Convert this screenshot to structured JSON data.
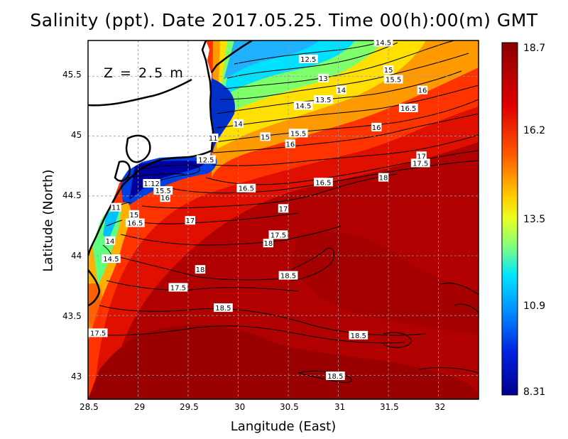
{
  "title": "Salinity (ppt). Date 2017.05.25. Time 00(h):00(m) GMT",
  "depth_label": "Z = 2.5 m",
  "axes": {
    "xlabel": "Langitude (East)",
    "ylabel": "Latitude (North)",
    "xticks": [
      "28.5",
      "29",
      "29.5",
      "30",
      "30.5",
      "31",
      "31.5",
      "32"
    ],
    "yticks": [
      "45.5",
      "45",
      "44.5",
      "44",
      "43.5",
      "43"
    ],
    "xlim": [
      28.5,
      32.4
    ],
    "ylim": [
      42.8,
      45.8
    ],
    "grid": true
  },
  "colorbar": {
    "labels": [
      "18.7",
      "16.2",
      "13.5",
      "10.9",
      "8.31"
    ],
    "min": 8.31,
    "max": 18.7,
    "colors": [
      "#8b0000",
      "#ff2a00",
      "#ff8c00",
      "#ffff00",
      "#7fff7f",
      "#00e5ff",
      "#0080ff",
      "#0000cd",
      "#00008b"
    ]
  },
  "contour_labels": [
    {
      "text": "14.5",
      "lon": 31.45,
      "lat": 45.78
    },
    {
      "text": "12.5",
      "lon": 30.7,
      "lat": 45.64
    },
    {
      "text": "15",
      "lon": 31.5,
      "lat": 45.55
    },
    {
      "text": "13",
      "lon": 30.85,
      "lat": 45.48
    },
    {
      "text": "15.5",
      "lon": 31.55,
      "lat": 45.47
    },
    {
      "text": "14",
      "lon": 31.03,
      "lat": 45.38
    },
    {
      "text": "16",
      "lon": 31.84,
      "lat": 45.38
    },
    {
      "text": "13.5",
      "lon": 30.85,
      "lat": 45.3
    },
    {
      "text": "14.5",
      "lon": 30.65,
      "lat": 45.25
    },
    {
      "text": "16.5",
      "lon": 31.7,
      "lat": 45.23
    },
    {
      "text": "14",
      "lon": 30.0,
      "lat": 45.1
    },
    {
      "text": "16",
      "lon": 31.38,
      "lat": 45.07
    },
    {
      "text": "15.5",
      "lon": 30.6,
      "lat": 45.02
    },
    {
      "text": "11",
      "lon": 29.75,
      "lat": 44.98
    },
    {
      "text": "15",
      "lon": 30.27,
      "lat": 44.99
    },
    {
      "text": "16",
      "lon": 30.52,
      "lat": 44.93
    },
    {
      "text": "17",
      "lon": 31.83,
      "lat": 44.83
    },
    {
      "text": "12.5",
      "lon": 29.68,
      "lat": 44.8
    },
    {
      "text": "17.5",
      "lon": 31.82,
      "lat": 44.77
    },
    {
      "text": "18",
      "lon": 31.45,
      "lat": 44.65
    },
    {
      "text": "16.5",
      "lon": 30.85,
      "lat": 44.61
    },
    {
      "text": "11",
      "lon": 29.1,
      "lat": 44.6
    },
    {
      "text": "12",
      "lon": 29.17,
      "lat": 44.6
    },
    {
      "text": "15.5",
      "lon": 29.25,
      "lat": 44.54
    },
    {
      "text": "16.5",
      "lon": 30.08,
      "lat": 44.56
    },
    {
      "text": "16",
      "lon": 29.27,
      "lat": 44.48
    },
    {
      "text": "17",
      "lon": 30.45,
      "lat": 44.39
    },
    {
      "text": "11",
      "lon": 28.78,
      "lat": 44.4
    },
    {
      "text": "15",
      "lon": 28.96,
      "lat": 44.34
    },
    {
      "text": "16.5",
      "lon": 28.97,
      "lat": 44.27
    },
    {
      "text": "17",
      "lon": 29.52,
      "lat": 44.29
    },
    {
      "text": "17.5",
      "lon": 30.4,
      "lat": 44.17
    },
    {
      "text": "14",
      "lon": 28.72,
      "lat": 44.12
    },
    {
      "text": "18",
      "lon": 30.3,
      "lat": 44.1
    },
    {
      "text": "14.5",
      "lon": 28.73,
      "lat": 43.97
    },
    {
      "text": "18",
      "lon": 29.62,
      "lat": 43.88
    },
    {
      "text": "18.5",
      "lon": 30.5,
      "lat": 43.83
    },
    {
      "text": "17.5",
      "lon": 29.4,
      "lat": 43.73
    },
    {
      "text": "18.5",
      "lon": 29.85,
      "lat": 43.56
    },
    {
      "text": "17.5",
      "lon": 28.6,
      "lat": 43.35
    },
    {
      "text": "18.5",
      "lon": 31.2,
      "lat": 43.33
    },
    {
      "text": "18.5",
      "lon": 30.97,
      "lat": 42.99
    }
  ]
}
